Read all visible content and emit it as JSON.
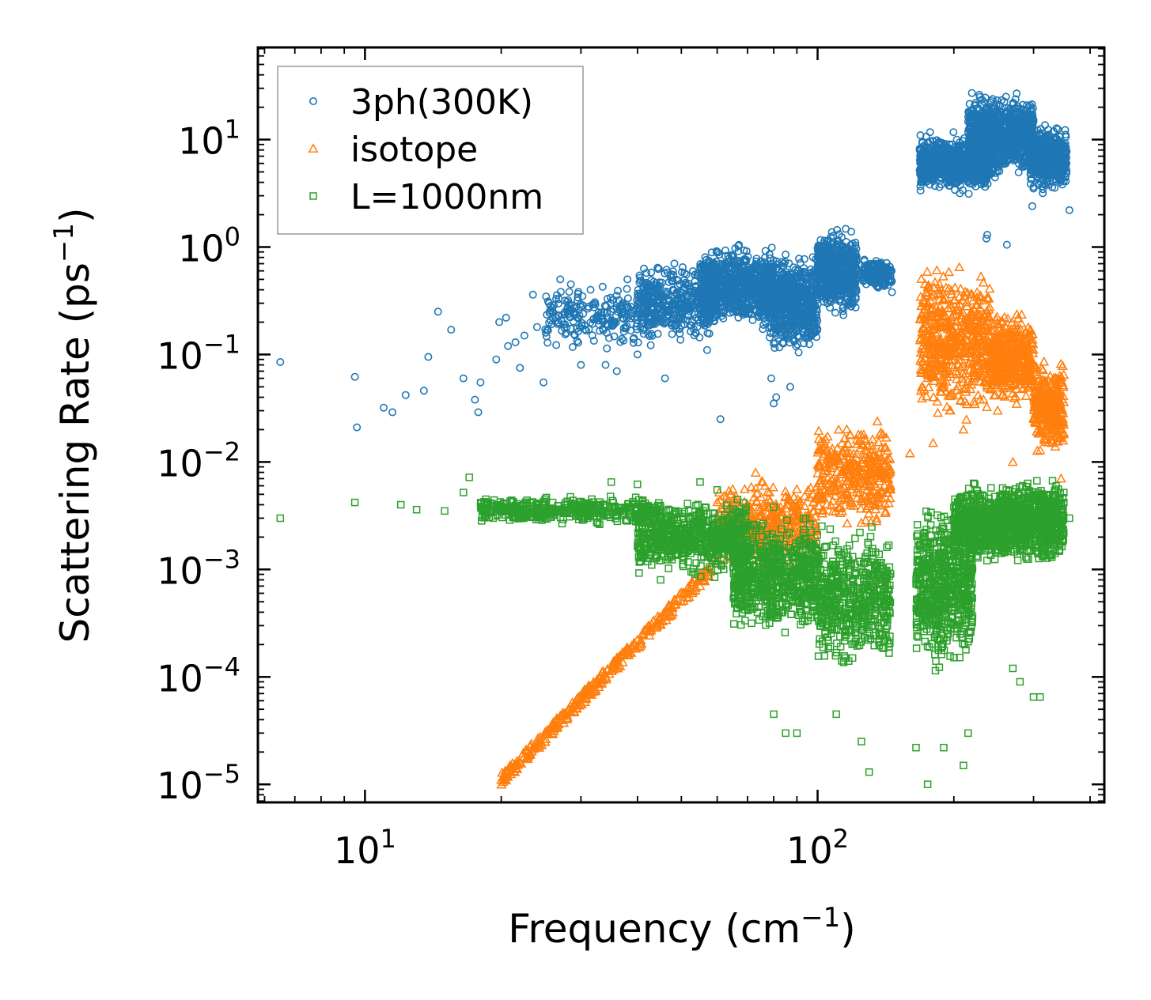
{
  "chart_data": {
    "type": "scatter",
    "xscale": "log",
    "yscale": "log",
    "xlabel": "Frequency (cm",
    "xlabel_sup": "−1",
    "xlabel_end": ")",
    "ylabel": "Scattering Rate (ps",
    "ylabel_sup": "−1",
    "ylabel_end": ")",
    "xlim": [
      5.8,
      430
    ],
    "ylim": [
      6.8e-06,
      72
    ],
    "xticks": [
      {
        "base": "10",
        "exp": "1",
        "value": 10
      },
      {
        "base": "10",
        "exp": "2",
        "value": 100
      }
    ],
    "yticks": [
      {
        "base": "10",
        "exp": "1",
        "value": 10
      },
      {
        "base": "10",
        "exp": "0",
        "value": 1
      },
      {
        "base": "10",
        "exp": "−1",
        "value": 0.1
      },
      {
        "base": "10",
        "exp": "−2",
        "value": 0.01
      },
      {
        "base": "10",
        "exp": "−3",
        "value": 0.001
      },
      {
        "base": "10",
        "exp": "−4",
        "value": 0.0001
      },
      {
        "base": "10",
        "exp": "−5",
        "value": 1e-05
      }
    ],
    "legend_position": "top-left",
    "series": [
      {
        "name": "3ph(300K)",
        "marker": "circle",
        "color": "#1f77b4",
        "points": [
          [
            6.5,
            0.085
          ],
          [
            9.5,
            0.062
          ],
          [
            9.6,
            0.021
          ],
          [
            11,
            0.032
          ],
          [
            11.5,
            0.029
          ],
          [
            12.3,
            0.042
          ],
          [
            13.5,
            0.046
          ],
          [
            13.8,
            0.095
          ],
          [
            14.5,
            0.25
          ],
          [
            15.5,
            0.17
          ],
          [
            16.5,
            0.06
          ],
          [
            17.5,
            0.038
          ],
          [
            17.8,
            0.029
          ],
          [
            18,
            0.055
          ],
          [
            19.5,
            0.09
          ],
          [
            19.8,
            0.2
          ],
          [
            20.5,
            0.22
          ],
          [
            20.7,
            0.12
          ],
          [
            21.5,
            0.13
          ],
          [
            22,
            0.075
          ],
          [
            22.5,
            0.15
          ],
          [
            23.5,
            0.36
          ],
          [
            24,
            0.18
          ],
          [
            24.8,
            0.055
          ],
          [
            25.5,
            0.3
          ],
          [
            27,
            0.5
          ],
          [
            28.5,
            0.45
          ],
          [
            30,
            0.08
          ],
          [
            31.5,
            0.4
          ],
          [
            34,
            0.08
          ],
          [
            36,
            0.07
          ],
          [
            38,
            0.5
          ],
          [
            40,
            0.1
          ],
          [
            42,
            0.42
          ],
          [
            46,
            0.06
          ],
          [
            48,
            0.55
          ],
          [
            57,
            0.11
          ],
          [
            61,
            0.025
          ],
          [
            79,
            0.06
          ],
          [
            80,
            0.035
          ],
          [
            81,
            0.04
          ],
          [
            87,
            0.05
          ],
          [
            128,
            0.45
          ],
          [
            133,
            0.7
          ],
          [
            140,
            0.45
          ],
          [
            145,
            0.5
          ],
          [
            146,
            0.38
          ],
          [
            236,
            1.2
          ],
          [
            237,
            1.3
          ],
          [
            262,
            1.05
          ],
          [
            298,
            2.4
          ],
          [
            300,
            3.5
          ],
          [
            360,
            2.2
          ]
        ],
        "clusters": [
          {
            "x": [
              25,
              45
            ],
            "y": [
              0.1,
              0.5
            ],
            "n": 260
          },
          {
            "x": [
              40,
              60
            ],
            "y": [
              0.12,
              0.8
            ],
            "n": 420
          },
          {
            "x": [
              55,
              80
            ],
            "y": [
              0.15,
              1.2
            ],
            "n": 800
          },
          {
            "x": [
              78,
              100
            ],
            "y": [
              0.09,
              1.0
            ],
            "n": 650
          },
          {
            "x": [
              100,
              122
            ],
            "y": [
              0.2,
              1.7
            ],
            "n": 650
          },
          {
            "x": [
              126,
              146
            ],
            "y": [
              0.4,
              0.8
            ],
            "n": 200
          },
          {
            "x": [
              168,
              240
            ],
            "y": [
              3,
              12
            ],
            "n": 900
          },
          {
            "x": [
              215,
              300
            ],
            "y": [
              4,
              30
            ],
            "n": 1000
          },
          {
            "x": [
              295,
              355
            ],
            "y": [
              3,
              15
            ],
            "n": 450
          }
        ]
      },
      {
        "name": "isotope",
        "marker": "triangle",
        "color": "#ff7f0e",
        "points": [
          [
            20,
            1.1e-05
          ],
          [
            21,
            1.3e-05
          ],
          [
            22,
            1.6e-05
          ],
          [
            24,
            2.4e-05
          ],
          [
            26,
            3.5e-05
          ],
          [
            29,
            5.5e-05
          ],
          [
            31,
            7.5e-05
          ],
          [
            33,
            0.0001
          ],
          [
            36,
            0.00015
          ],
          [
            40,
            0.00022
          ],
          [
            45,
            0.00035
          ],
          [
            50,
            0.0005
          ],
          [
            55,
            0.0007
          ],
          [
            160,
            0.012
          ],
          [
            170,
            0.05
          ],
          [
            180,
            0.015
          ],
          [
            200,
            0.15
          ],
          [
            210,
            0.02
          ],
          [
            250,
            0.03
          ],
          [
            270,
            0.01
          ],
          [
            330,
            0.015
          ],
          [
            345,
            0.007
          ]
        ],
        "line": {
          "x": [
            20,
            58
          ],
          "y": [
            1.1e-05,
            0.001
          ],
          "n": 320,
          "spread": 0.12
        },
        "clusters": [
          {
            "x": [
              60,
              100
            ],
            "y": [
              0.0008,
              0.009
            ],
            "n": 400
          },
          {
            "x": [
              100,
              145
            ],
            "y": [
              0.002,
              0.03
            ],
            "n": 350
          },
          {
            "x": [
              168,
              240
            ],
            "y": [
              0.02,
              0.9
            ],
            "n": 550
          },
          {
            "x": [
              240,
              300
            ],
            "y": [
              0.03,
              0.3
            ],
            "n": 420
          },
          {
            "x": [
              300,
              350
            ],
            "y": [
              0.01,
              0.1
            ],
            "n": 300
          }
        ]
      },
      {
        "name": "L=1000nm",
        "marker": "square",
        "color": "#2ca02c",
        "points": [
          [
            6.5,
            0.003
          ],
          [
            9.5,
            0.0042
          ],
          [
            12,
            0.004
          ],
          [
            13,
            0.0036
          ],
          [
            15,
            0.0035
          ],
          [
            16.5,
            0.0052
          ],
          [
            17,
            0.0072
          ],
          [
            18.5,
            0.0045
          ],
          [
            19.5,
            0.0035
          ],
          [
            21,
            0.0035
          ],
          [
            25,
            0.0045
          ],
          [
            28,
            0.004
          ],
          [
            35,
            0.0065
          ],
          [
            40,
            0.0062
          ],
          [
            43,
            0.0011
          ],
          [
            45,
            0.0008
          ],
          [
            55,
            0.0065
          ],
          [
            60,
            0.0055
          ],
          [
            62,
            0.001
          ],
          [
            80,
            4.5e-05
          ],
          [
            85,
            3e-05
          ],
          [
            90,
            3e-05
          ],
          [
            110,
            4.5e-05
          ],
          [
            125,
            2.5e-05
          ],
          [
            130,
            1.3e-05
          ],
          [
            165,
            2.2e-05
          ],
          [
            175,
            1e-05
          ],
          [
            190,
            2.2e-05
          ],
          [
            210,
            1.5e-05
          ],
          [
            215,
            3e-05
          ],
          [
            270,
            0.00012
          ],
          [
            280,
            9e-05
          ],
          [
            300,
            6.5e-05
          ],
          [
            310,
            6.5e-05
          ],
          [
            360,
            0.003
          ]
        ],
        "clusters": [
          {
            "x": [
              18,
              45
            ],
            "y": [
              0.0025,
              0.005
            ],
            "n": 420
          },
          {
            "x": [
              40,
              70
            ],
            "y": [
              0.0008,
              0.005
            ],
            "n": 650
          },
          {
            "x": [
              65,
              100
            ],
            "y": [
              0.0002,
              0.004
            ],
            "n": 700
          },
          {
            "x": [
              100,
              145
            ],
            "y": [
              0.0001,
              0.003
            ],
            "n": 550
          },
          {
            "x": [
              165,
              220
            ],
            "y": [
              0.0001,
              0.005
            ],
            "n": 650
          },
          {
            "x": [
              200,
              260
            ],
            "y": [
              0.001,
              0.007
            ],
            "n": 550
          },
          {
            "x": [
              255,
              350
            ],
            "y": [
              0.001,
              0.008
            ],
            "n": 700
          }
        ]
      }
    ]
  }
}
